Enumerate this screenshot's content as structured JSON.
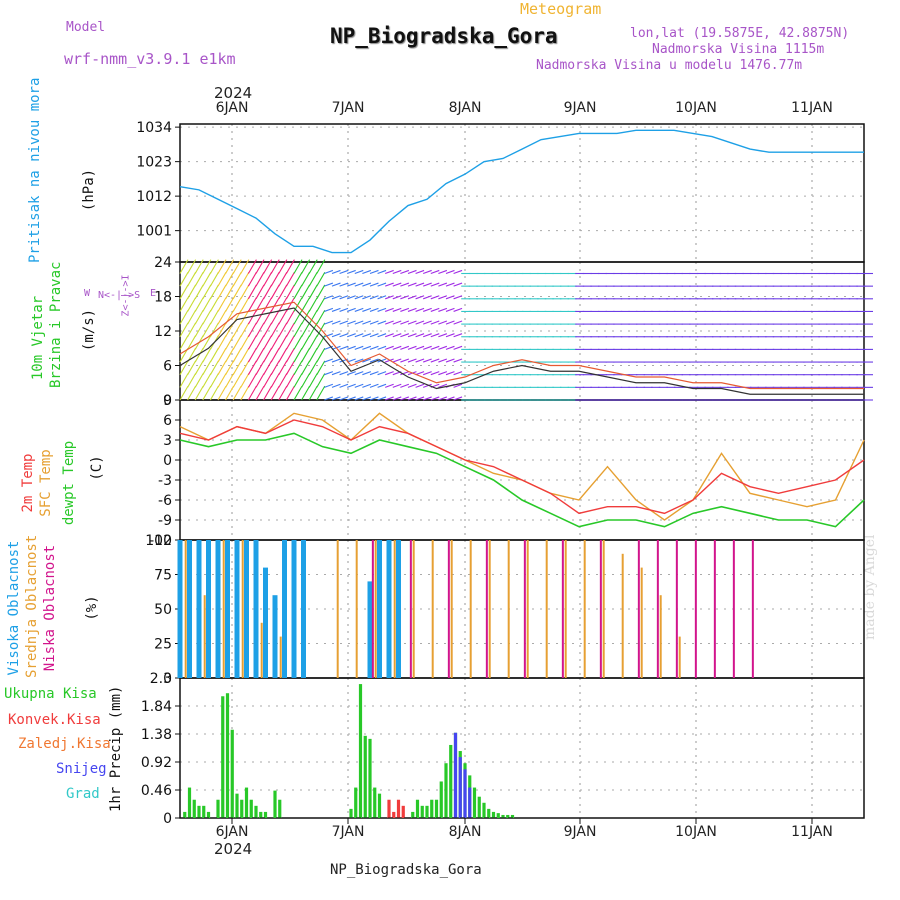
{
  "header": {
    "model_label": "Model",
    "model_name": "wrf-nmm_v3.9.1 e1km",
    "title": "NP_Biogradska_Gora",
    "subtitle": "Meteogram",
    "lonlat": "lon,lat (19.5875E, 42.8875N)",
    "altitude": "Nadmorska Visina 1115m",
    "model_altitude": "Nadmorska Visina u modelu 1476.77m",
    "footer": "NP_Biogradska_Gora",
    "watermark": "made by Angel",
    "year_top": "2024",
    "year_bottom": "2024"
  },
  "axis_days": [
    "6JAN",
    "7JAN",
    "8JAN",
    "9JAN",
    "10JAN",
    "11JAN"
  ],
  "colors": {
    "pressure": "#1ea0e6",
    "t2m": "#f03c3c",
    "tsfc": "#e6a032",
    "dew": "#28c828",
    "high_cloud": "#1ea0e6",
    "mid_cloud": "#e6a032",
    "low_cloud": "#d2148c",
    "total_precip": "#28c828",
    "conv_precip": "#f03c3c",
    "frz_precip": "#f07832",
    "snow": "#4646f0",
    "hail": "#32c8c8",
    "wind_speed": "#333333",
    "wind_gust": "#e65a32"
  },
  "panel_labels": {
    "pressure": "Pritisak na nivou mora",
    "pressure_unit": "(hPa)",
    "wind1": "10m Vjetar",
    "wind2": "Brzina i Pravac",
    "wind_unit": "(m/s)",
    "wind_compass_w": "W",
    "wind_compass_e": "E",
    "wind_compass_n": "N<-|->S",
    "wind_compass_z": "Z<-|->I",
    "temp1": "2m Temp",
    "temp2": "SFC Temp",
    "temp3": "dewpt Temp",
    "temp_unit": "(C)",
    "cloud1": "Visoka Oblacnost",
    "cloud2": "Srednja Oblacnost",
    "cloud3": "Niska Oblacnost",
    "cloud_unit": "(%)",
    "precip_unit": "1hr Precip (mm)",
    "precip_legend": [
      "Ukupna Kisa",
      "Konvek.Kisa",
      "Zaledj.Kisa",
      "Snijeg",
      "Grad"
    ]
  },
  "chart_data": [
    {
      "type": "line",
      "panel": "pressure",
      "x_unit": "hours from 5 Jan 12:00",
      "yticks": [
        "1001",
        "1012",
        "1023",
        "1034"
      ],
      "ylim": [
        991,
        1035
      ],
      "series": [
        {
          "name": "Pritisak na nivou mora",
          "x": [
            0,
            4,
            8,
            12,
            16,
            20,
            24,
            28,
            32,
            36,
            40,
            44,
            48,
            52,
            56,
            60,
            64,
            68,
            72,
            76,
            80,
            84,
            88,
            92,
            96,
            100,
            104,
            108,
            112,
            116,
            120,
            124,
            128,
            132,
            136,
            140,
            144
          ],
          "values": [
            1015,
            1014,
            1011,
            1008,
            1005,
            1000,
            996,
            996,
            994,
            994,
            998,
            1004,
            1009,
            1011,
            1016,
            1019,
            1023,
            1024,
            1027,
            1030,
            1031,
            1032,
            1032,
            1032,
            1033,
            1033,
            1033,
            1032,
            1031,
            1029,
            1027,
            1026,
            1026,
            1026,
            1026,
            1026,
            1026
          ]
        }
      ]
    },
    {
      "type": "line",
      "panel": "wind",
      "yticks": [
        "0",
        "6",
        "12",
        "18",
        "24"
      ],
      "ylim": [
        0,
        24
      ],
      "series": [
        {
          "name": "10m Vjetar",
          "x": [
            0,
            6,
            12,
            18,
            24,
            30,
            36,
            42,
            48,
            54,
            60,
            66,
            72,
            78,
            84,
            90,
            96,
            102,
            108,
            114,
            120,
            126,
            132,
            138,
            144
          ],
          "values": [
            6,
            9,
            14,
            15,
            16,
            11,
            5,
            7,
            4,
            2,
            3,
            5,
            6,
            5,
            5,
            4,
            3,
            3,
            2,
            2,
            1,
            1,
            1,
            1,
            1
          ]
        },
        {
          "name": "gust",
          "x": [
            0,
            6,
            12,
            18,
            24,
            30,
            36,
            42,
            48,
            54,
            60,
            66,
            72,
            78,
            84,
            90,
            96,
            102,
            108,
            114,
            120,
            126,
            132,
            138,
            144
          ],
          "values": [
            8,
            11,
            15,
            16,
            17,
            12,
            6,
            8,
            5,
            3,
            4,
            6,
            7,
            6,
            6,
            5,
            4,
            4,
            3,
            3,
            2,
            2,
            2,
            2,
            2
          ]
        }
      ]
    },
    {
      "type": "line",
      "panel": "temperature",
      "yticks": [
        "-12",
        "-9",
        "-6",
        "-3",
        "0",
        "3",
        "6",
        "9"
      ],
      "ylim": [
        -12,
        9
      ],
      "series": [
        {
          "name": "2m Temp",
          "x": [
            0,
            6,
            12,
            18,
            24,
            30,
            36,
            42,
            48,
            54,
            60,
            66,
            72,
            78,
            84,
            90,
            96,
            102,
            108,
            114,
            120,
            126,
            132,
            138,
            144
          ],
          "values": [
            4,
            3,
            5,
            4,
            6,
            5,
            3,
            5,
            4,
            2,
            0,
            -1,
            -3,
            -5,
            -8,
            -7,
            -7,
            -8,
            -6,
            -2,
            -4,
            -5,
            -4,
            -3,
            0
          ]
        },
        {
          "name": "SFC Temp",
          "x": [
            0,
            6,
            12,
            18,
            24,
            30,
            36,
            42,
            48,
            54,
            60,
            66,
            72,
            78,
            84,
            90,
            96,
            102,
            108,
            114,
            120,
            126,
            132,
            138,
            144
          ],
          "values": [
            5,
            3,
            5,
            4,
            7,
            6,
            3,
            7,
            4,
            2,
            0,
            -2,
            -3,
            -5,
            -6,
            -1,
            -6,
            -9,
            -6,
            1,
            -5,
            -6,
            -7,
            -6,
            3
          ]
        },
        {
          "name": "dewpt Temp",
          "x": [
            0,
            6,
            12,
            18,
            24,
            30,
            36,
            42,
            48,
            54,
            60,
            66,
            72,
            78,
            84,
            90,
            96,
            102,
            108,
            114,
            120,
            126,
            132,
            138,
            144
          ],
          "values": [
            3,
            2,
            3,
            3,
            4,
            2,
            1,
            3,
            2,
            1,
            -1,
            -3,
            -6,
            -8,
            -10,
            -9,
            -9,
            -10,
            -8,
            -7,
            -8,
            -9,
            -9,
            -10,
            -6
          ]
        }
      ]
    },
    {
      "type": "bar",
      "panel": "cloud",
      "yticks": [
        "0",
        "25",
        "50",
        "75",
        "100"
      ],
      "ylim": [
        0,
        100
      ],
      "series": [
        {
          "name": "Visoka Oblacnost",
          "x": [
            0,
            2,
            4,
            6,
            8,
            10,
            12,
            14,
            16,
            18,
            20,
            22,
            24,
            26,
            28,
            30,
            32,
            34,
            36,
            38,
            40,
            42,
            44,
            46,
            48
          ],
          "values": [
            100,
            100,
            100,
            100,
            100,
            100,
            100,
            100,
            100,
            80,
            60,
            100,
            100,
            100,
            0,
            0,
            0,
            0,
            0,
            0,
            70,
            100,
            100,
            100,
            0
          ]
        },
        {
          "name": "Srednja Oblacnost",
          "x": [
            0,
            4,
            8,
            12,
            16,
            20,
            24,
            28,
            32,
            36,
            40,
            44,
            48,
            52,
            56,
            60,
            64,
            68,
            72,
            76,
            80,
            84,
            88,
            92,
            96,
            100,
            104,
            108
          ],
          "values": [
            100,
            60,
            100,
            100,
            40,
            30,
            0,
            0,
            100,
            100,
            100,
            100,
            100,
            100,
            100,
            100,
            100,
            100,
            100,
            100,
            100,
            100,
            100,
            90,
            80,
            60,
            30,
            0
          ]
        },
        {
          "name": "Niska Oblacnost",
          "x": [
            40,
            48,
            56,
            64,
            72,
            80,
            88,
            96,
            100,
            104,
            108,
            112,
            116,
            120
          ],
          "values": [
            100,
            100,
            100,
            100,
            100,
            100,
            100,
            100,
            100,
            100,
            100,
            100,
            100,
            100
          ]
        }
      ]
    },
    {
      "type": "bar",
      "panel": "precip",
      "yticks": [
        "0",
        "0.46",
        "0.92",
        "1.38",
        "1.84",
        "2.3"
      ],
      "ylim": [
        0,
        2.3
      ],
      "series": [
        {
          "name": "Ukupna Kisa",
          "x": [
            1,
            2,
            3,
            4,
            5,
            6,
            7,
            8,
            9,
            10,
            11,
            12,
            13,
            14,
            15,
            16,
            17,
            18,
            19,
            20,
            21,
            22,
            23,
            24,
            36,
            37,
            38,
            39,
            40,
            41,
            42,
            49,
            50,
            51,
            52,
            53,
            54,
            55,
            56,
            57,
            58,
            59,
            60,
            61,
            62,
            63,
            64,
            65,
            66,
            67,
            68,
            69,
            70
          ],
          "values": [
            0.1,
            0.5,
            0.3,
            0.2,
            0.2,
            0.1,
            0.0,
            0.3,
            2.0,
            2.05,
            1.45,
            0.4,
            0.3,
            0.5,
            0.3,
            0.2,
            0.1,
            0.1,
            0.0,
            0.45,
            0.3,
            0.0,
            0.0,
            0.0,
            0.15,
            0.5,
            2.2,
            1.35,
            1.3,
            0.5,
            0.4,
            0.1,
            0.3,
            0.2,
            0.2,
            0.3,
            0.3,
            0.6,
            0.9,
            1.2,
            1.4,
            1.1,
            0.9,
            0.7,
            0.5,
            0.35,
            0.25,
            0.15,
            0.1,
            0.08,
            0.05,
            0.05,
            0.05
          ]
        },
        {
          "name": "Konvek.Kisa",
          "x": [
            44,
            45,
            46,
            47
          ],
          "values": [
            0.3,
            0.1,
            0.3,
            0.2
          ]
        },
        {
          "name": "Snijeg",
          "x": [
            58,
            59,
            60,
            61
          ],
          "values": [
            1.4,
            1.0,
            0.8,
            0.5
          ]
        }
      ]
    }
  ]
}
